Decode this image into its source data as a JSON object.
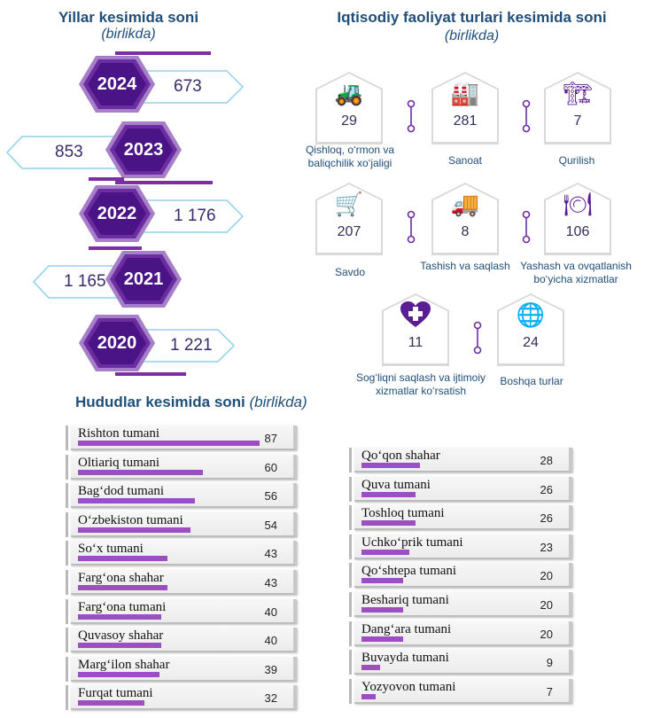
{
  "years_section": {
    "title": "Yillar kesimida soni",
    "subtitle": "(birlikda)"
  },
  "activity_section": {
    "title": "Iqtisodiy faoliyat turlari kesimida soni",
    "subtitle": "(birlikda)"
  },
  "regions_section": {
    "title": "Hududlar kesimida soni",
    "subtitle": "(birlikda)"
  },
  "colors": {
    "purple_dark": "#4a1486",
    "purple_mid": "#7b2fa3",
    "bar": "#9b4fc0",
    "title": "#1f4e79",
    "arrow_border": "#8fd0ea"
  },
  "chart_data": [
    {
      "type": "bar",
      "categories": [
        "2024",
        "2023",
        "2022",
        "2021",
        "2020"
      ],
      "values": [
        673,
        853,
        1176,
        1165,
        1221
      ],
      "value_labels": [
        "673",
        "853",
        "1 176",
        "1 165",
        "1 221"
      ]
    },
    {
      "type": "table",
      "items": [
        {
          "label": "Qishloq, o‘rmon va baliqchilik xo‘jaligi",
          "value": 29,
          "icon": "tractor-icon"
        },
        {
          "label": "Sanoat",
          "value": 281,
          "icon": "factory-icon"
        },
        {
          "label": "Qurilish",
          "value": 7,
          "icon": "crane-icon"
        },
        {
          "label": "Savdo",
          "value": 207,
          "icon": "shopping-cart-icon"
        },
        {
          "label": "Tashish va saqlash",
          "value": 8,
          "icon": "truck-icon"
        },
        {
          "label": "Yashash va ovqatlanish bo‘yicha xizmatlar",
          "value": 106,
          "icon": "plate-cutlery-icon"
        },
        {
          "label": "Sog‘liqni saqlash va ijtimoiy xizmatlar ko‘rsatish",
          "value": 11,
          "icon": "heart-cross-icon"
        },
        {
          "label": "Boshqa turlar",
          "value": 24,
          "icon": "globe-icon"
        }
      ]
    },
    {
      "type": "bar",
      "orientation": "horizontal",
      "categories": [
        "Rishton tumani",
        "Oltiariq tumani",
        "Bag‘dod tumani",
        "O‘zbekiston tumani",
        "So‘x tumani",
        "Farg‘ona shahar",
        "Farg‘ona tumani",
        "Quvasoy shahar",
        "Marg‘ilon shahar",
        "Furqat tumani",
        "Qo‘qon shahar",
        "Quva tumani",
        "Toshloq tumani",
        "Uchko‘prik tumani",
        "Qo‘shtepa tumani",
        "Beshariq tumani",
        "Dang‘ara tumani",
        "Buvayda tumani",
        "Yozyovon tumani"
      ],
      "values": [
        87,
        60,
        56,
        54,
        43,
        43,
        40,
        40,
        39,
        32,
        28,
        26,
        26,
        23,
        20,
        20,
        20,
        9,
        7
      ]
    }
  ]
}
